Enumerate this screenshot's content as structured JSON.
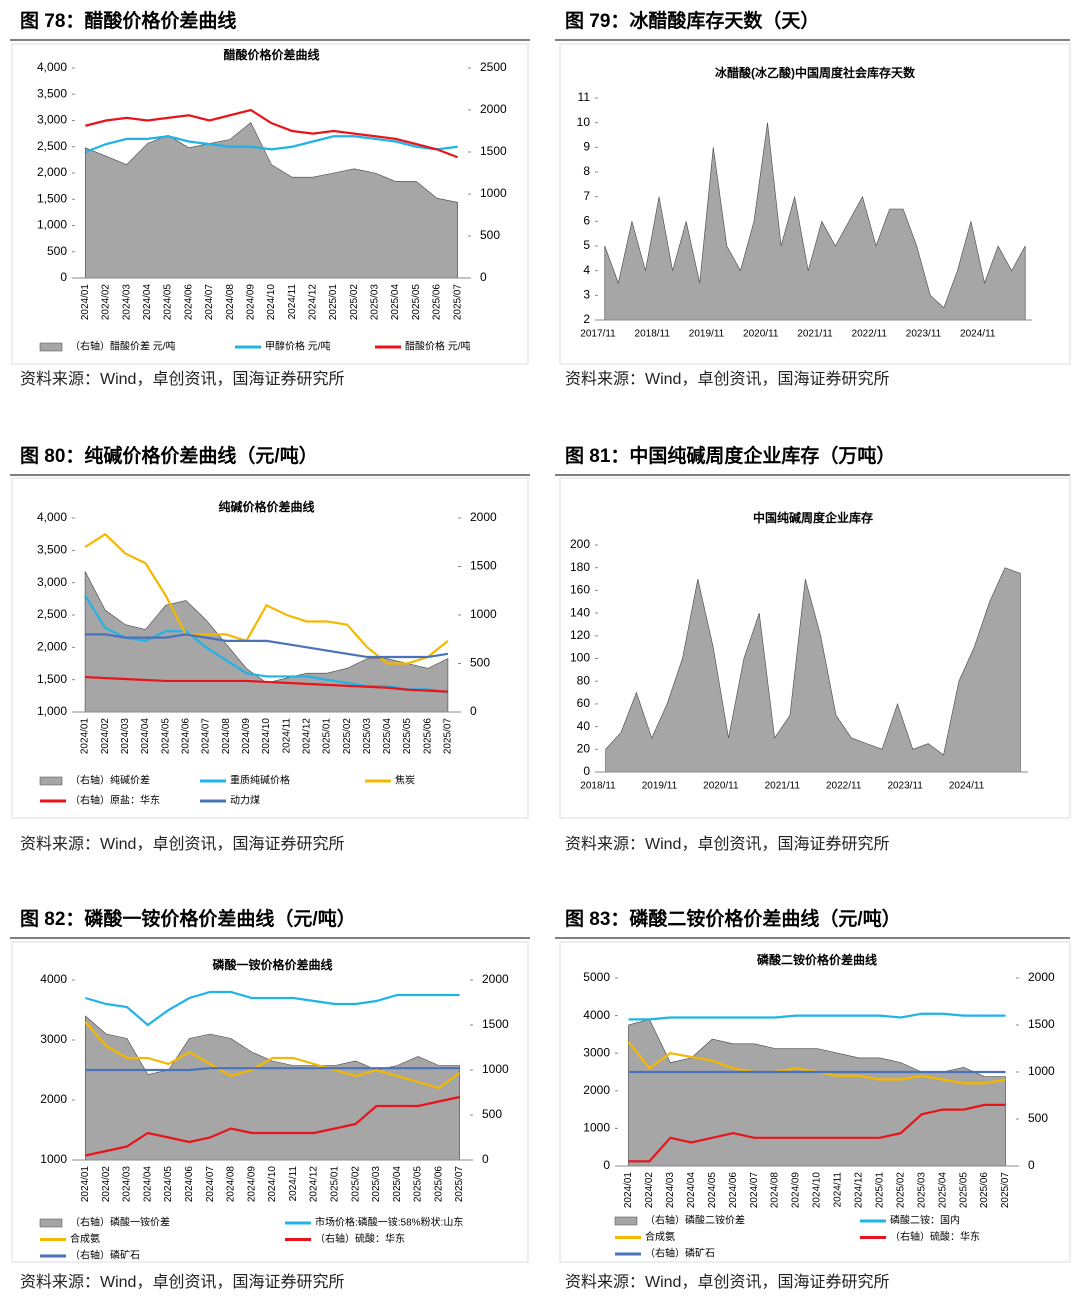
{
  "figures": [
    {
      "heading": "图 78：醋酸价格价差曲线",
      "source": "资料来源：Wind，卓创资讯，国海证券研究所"
    },
    {
      "heading": "图 79：冰醋酸库存天数（天）",
      "source": "资料来源：Wind，卓创资讯，国海证券研究所"
    },
    {
      "heading": "图 80：纯碱价格价差曲线（元/吨）",
      "source": "资料来源：Wind，卓创资讯，国海证券研究所"
    },
    {
      "heading": "图 81：中国纯碱周度企业库存（万吨）",
      "source": "资料来源：Wind，卓创资讯，国海证券研究所"
    },
    {
      "heading": "图 82：磷酸一铵价格价差曲线（元/吨）",
      "source": "资料来源：Wind，卓创资讯，国海证券研究所"
    },
    {
      "heading": "图 83：磷酸二铵价格价差曲线（元/吨）",
      "source": "资料来源：Wind，卓创资讯，国海证券研究所"
    }
  ],
  "chart_data": [
    {
      "type": "combo",
      "title": "醋酸价格价差曲线",
      "categories": [
        "2024/01",
        "2024/02",
        "2024/03",
        "2024/04",
        "2024/05",
        "2024/06",
        "2024/07",
        "2024/08",
        "2024/09",
        "2024/10",
        "2024/11",
        "2024/12",
        "2025/01",
        "2025/02",
        "2025/03",
        "2025/04",
        "2025/05",
        "2025/06",
        "2025/07"
      ],
      "ylim": [
        0,
        4000
      ],
      "yticks": [
        0,
        500,
        {
          "value": 1000,
          "label": "1,000"
        },
        {
          "value": 1500,
          "label": "1,500"
        },
        {
          "value": 2000,
          "label": "2,000"
        },
        {
          "value": 2500,
          "label": "2,500"
        },
        {
          "value": 3000,
          "label": "3,000"
        },
        {
          "value": 3500,
          "label": "3,500"
        },
        {
          "value": 4000,
          "label": "4,000"
        }
      ],
      "y2lim": [
        0,
        2500
      ],
      "y2ticks": [
        0,
        500,
        1000,
        1500,
        2000,
        2500
      ],
      "series": [
        {
          "name": "（右轴）醋酸价差 元/吨",
          "kind": "area",
          "axis": "y2",
          "color": "#a6a6a6",
          "values": [
            1550,
            1450,
            1350,
            1600,
            1700,
            1550,
            1600,
            1650,
            1850,
            1350,
            1200,
            1200,
            1250,
            1300,
            1250,
            1150,
            1150,
            950,
            900
          ]
        },
        {
          "name": "甲醇价格 元/吨",
          "kind": "line",
          "color": "#1fb3e8",
          "values": [
            2400,
            2550,
            2650,
            2650,
            2700,
            2600,
            2550,
            2500,
            2500,
            2450,
            2500,
            2600,
            2700,
            2700,
            2650,
            2600,
            2500,
            2450,
            2500
          ]
        },
        {
          "name": "醋酸价格 元/吨",
          "kind": "line",
          "color": "#e8141b",
          "values": [
            2900,
            3000,
            3050,
            3000,
            3050,
            3100,
            3000,
            3100,
            3200,
            2950,
            2800,
            2750,
            2800,
            2750,
            2700,
            2650,
            2550,
            2450,
            2300
          ]
        }
      ]
    },
    {
      "type": "area",
      "title": "冰醋酸(冰乙酸)中国周度社会库存天数",
      "color": "#a6a6a6",
      "categories": [
        "2017/11",
        null,
        null,
        null,
        "2018/11",
        null,
        null,
        null,
        "2019/11",
        null,
        null,
        null,
        "2020/11",
        null,
        null,
        null,
        "2021/11",
        null,
        null,
        null,
        "2022/11",
        null,
        null,
        null,
        "2023/11",
        null,
        null,
        null,
        "2024/11",
        null,
        null,
        null
      ],
      "values": [
        5,
        3.5,
        6,
        4,
        7,
        4,
        6,
        3.5,
        9,
        5,
        4,
        6,
        10,
        5,
        7,
        4,
        6,
        5,
        6,
        7,
        5,
        6.5,
        6.5,
        5,
        3,
        2.5,
        4,
        6,
        3.5,
        5,
        4,
        5
      ],
      "ylim": [
        2,
        11
      ],
      "yticks": [
        2,
        3,
        4,
        5,
        6,
        7,
        8,
        9,
        10,
        11
      ]
    },
    {
      "type": "combo",
      "title": "纯碱价格价差曲线",
      "categories": [
        "2024/01",
        "2024/02",
        "2024/03",
        "2024/04",
        "2024/05",
        "2024/06",
        "2024/07",
        "2024/08",
        "2024/09",
        "2024/10",
        "2024/11",
        "2024/12",
        "2025/01",
        "2025/02",
        "2025/03",
        "2025/04",
        "2025/05",
        "2025/06",
        "2025/07"
      ],
      "ylim": [
        1000,
        4000
      ],
      "yticks": [
        {
          "value": 1000,
          "label": "1,000"
        },
        {
          "value": 1500,
          "label": "1,500"
        },
        {
          "value": 2000,
          "label": "2,000"
        },
        {
          "value": 2500,
          "label": "2,500"
        },
        {
          "value": 3000,
          "label": "3,000"
        },
        {
          "value": 3500,
          "label": "3,500"
        },
        {
          "value": 4000,
          "label": "4,000"
        }
      ],
      "y2lim": [
        0,
        2000
      ],
      "y2ticks": [
        0,
        500,
        1000,
        1500,
        2000
      ],
      "series": [
        {
          "name": "（右轴）纯碱价差",
          "kind": "area",
          "axis": "y2",
          "color": "#a6a6a6",
          "values": [
            1450,
            1050,
            900,
            850,
            1100,
            1150,
            950,
            700,
            450,
            300,
            350,
            400,
            400,
            450,
            550,
            550,
            500,
            450,
            550
          ]
        },
        {
          "name": "重质纯碱价格",
          "kind": "line",
          "color": "#1fb3e8",
          "values": [
            2800,
            2300,
            2150,
            2100,
            2250,
            2250,
            2000,
            1800,
            1600,
            1550,
            1550,
            1550,
            1500,
            1450,
            1400,
            1400,
            1350,
            1350,
            1300
          ]
        },
        {
          "name": "焦炭",
          "kind": "line",
          "color": "#f5b800",
          "values": [
            3550,
            3750,
            3450,
            3300,
            2800,
            2200,
            2200,
            2200,
            2100,
            2650,
            2500,
            2400,
            2400,
            2350,
            2000,
            1750,
            1750,
            1850,
            2100
          ]
        },
        {
          "name": "（右轴）原盐：华东",
          "kind": "line",
          "axis": "y2",
          "color": "#e8141b",
          "values": [
            360,
            350,
            340,
            330,
            320,
            320,
            320,
            320,
            320,
            310,
            300,
            290,
            280,
            270,
            260,
            250,
            230,
            220,
            210
          ]
        },
        {
          "name": "动力煤",
          "kind": "line",
          "color": "#4a72b8",
          "values": [
            2200,
            2200,
            2150,
            2150,
            2150,
            2200,
            2150,
            2100,
            2100,
            2100,
            2050,
            2000,
            1950,
            1900,
            1850,
            1850,
            1850,
            1850,
            1900
          ]
        }
      ]
    },
    {
      "type": "area",
      "title": "中国纯碱周度企业库存",
      "color": "#a6a6a6",
      "categories": [
        "2018/11",
        null,
        null,
        null,
        "2019/11",
        null,
        null,
        null,
        "2020/11",
        null,
        null,
        null,
        "2021/11",
        null,
        null,
        null,
        "2022/11",
        null,
        null,
        null,
        "2023/11",
        null,
        null,
        null,
        "2024/11",
        null,
        null,
        null
      ],
      "values": [
        20,
        35,
        70,
        30,
        60,
        100,
        170,
        110,
        30,
        100,
        140,
        30,
        50,
        170,
        120,
        50,
        30,
        25,
        20,
        60,
        20,
        25,
        15,
        80,
        110,
        150,
        180,
        175
      ],
      "ylim": [
        0,
        200
      ],
      "yticks": [
        0,
        20,
        40,
        60,
        80,
        100,
        120,
        140,
        160,
        180,
        200
      ]
    },
    {
      "type": "combo",
      "title": "磷酸一铵价格价差曲线",
      "categories": [
        "2024/01",
        "2024/02",
        "2024/03",
        "2024/04",
        "2024/05",
        "2024/06",
        "2024/07",
        "2024/08",
        "2024/09",
        "2024/10",
        "2024/11",
        "2024/12",
        "2025/01",
        "2025/02",
        "2025/03",
        "2025/04",
        "2025/05",
        "2025/06",
        "2025/07"
      ],
      "ylim": [
        1000,
        4000
      ],
      "yticks": [
        1000,
        2000,
        3000,
        4000
      ],
      "y2lim": [
        0,
        2000
      ],
      "y2ticks": [
        0,
        500,
        1000,
        1500,
        2000
      ],
      "series": [
        {
          "name": "（右轴）磷酸一铵价差",
          "kind": "area",
          "axis": "y2",
          "color": "#a6a6a6",
          "values": [
            1600,
            1400,
            1350,
            950,
            1000,
            1350,
            1400,
            1350,
            1200,
            1100,
            1050,
            1050,
            1050,
            1100,
            1000,
            1050,
            1150,
            1050,
            1050
          ]
        },
        {
          "name": "市场价格:磷酸一铵:58%粉状:山东",
          "kind": "line",
          "color": "#1fb3e8",
          "values": [
            3700,
            3600,
            3550,
            3250,
            3500,
            3700,
            3800,
            3800,
            3700,
            3700,
            3700,
            3650,
            3600,
            3600,
            3650,
            3750,
            3750,
            3750,
            3750
          ]
        },
        {
          "name": "合成氨",
          "kind": "line",
          "color": "#f5b800",
          "values": [
            3300,
            2900,
            2700,
            2700,
            2600,
            2800,
            2600,
            2400,
            2500,
            2700,
            2700,
            2600,
            2500,
            2400,
            2500,
            2400,
            2300,
            2200,
            2450
          ]
        },
        {
          "name": "（右轴）硫酸：华东",
          "kind": "line",
          "axis": "y2",
          "color": "#e8141b",
          "values": [
            50,
            100,
            150,
            300,
            250,
            200,
            250,
            350,
            300,
            300,
            300,
            300,
            350,
            400,
            600,
            600,
            600,
            650,
            700
          ]
        },
        {
          "name": "（右轴）磷矿石",
          "kind": "line",
          "axis": "y2",
          "color": "#4a72b8",
          "values": [
            1000,
            1000,
            1000,
            1000,
            1000,
            1000,
            1020,
            1020,
            1020,
            1020,
            1020,
            1020,
            1020,
            1020,
            1020,
            1020,
            1020,
            1020,
            1020
          ]
        }
      ]
    },
    {
      "type": "combo",
      "title": "磷酸二铵价格价差曲线",
      "categories": [
        "2024/01",
        "2024/02",
        "2024/03",
        "2024/04",
        "2024/05",
        "2024/06",
        "2024/07",
        "2024/08",
        "2024/09",
        "2024/10",
        "2024/11",
        "2024/12",
        "2025/01",
        "2025/02",
        "2025/03",
        "2025/04",
        "2025/05",
        "2025/06",
        "2025/07"
      ],
      "ylim": [
        0,
        5000
      ],
      "yticks": [
        0,
        1000,
        2000,
        3000,
        4000,
        5000
      ],
      "y2lim": [
        0,
        2000
      ],
      "y2ticks": [
        0,
        500,
        1000,
        1500,
        2000
      ],
      "series": [
        {
          "name": "（右轴）磷酸二铵价差",
          "kind": "area",
          "axis": "y2",
          "color": "#a6a6a6",
          "values": [
            1500,
            1560,
            1100,
            1150,
            1350,
            1300,
            1300,
            1250,
            1250,
            1250,
            1200,
            1150,
            1150,
            1100,
            1000,
            1000,
            1050,
            950,
            950
          ]
        },
        {
          "name": "磷酸二铵：国内",
          "kind": "line",
          "color": "#1fb3e8",
          "values": [
            3900,
            3900,
            3950,
            3950,
            3950,
            3950,
            3950,
            3950,
            4000,
            4000,
            4000,
            4000,
            4000,
            3950,
            4050,
            4050,
            4000,
            4000,
            4000
          ]
        },
        {
          "name": "合成氨",
          "kind": "line",
          "color": "#f5b800",
          "values": [
            3300,
            2600,
            3000,
            2900,
            2800,
            2600,
            2500,
            2500,
            2600,
            2500,
            2400,
            2400,
            2300,
            2300,
            2400,
            2300,
            2200,
            2200,
            2300
          ]
        },
        {
          "name": "（右轴）硫酸：华东",
          "kind": "line",
          "axis": "y2",
          "color": "#e8141b",
          "values": [
            50,
            50,
            300,
            250,
            300,
            350,
            300,
            300,
            300,
            300,
            300,
            300,
            300,
            350,
            550,
            600,
            600,
            650,
            650
          ]
        },
        {
          "name": "（右轴）磷矿石",
          "kind": "line",
          "axis": "y2",
          "color": "#4a72b8",
          "values": [
            1000,
            1000,
            1000,
            1000,
            1000,
            1000,
            1000,
            1000,
            1000,
            1000,
            1000,
            1000,
            1000,
            1000,
            1000,
            1000,
            1000,
            1000,
            1000
          ]
        }
      ]
    }
  ]
}
